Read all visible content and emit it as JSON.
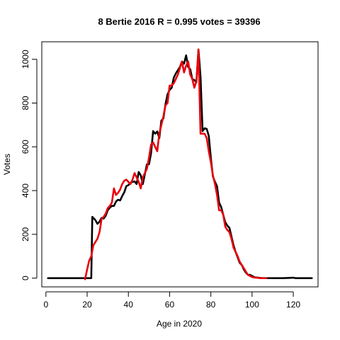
{
  "chart_data": {
    "type": "line",
    "title": "8 Bertie 2016 R = 0.995 votes = 39396",
    "xlabel": "Age in 2020",
    "ylabel": "Votes",
    "xlim": [
      -2,
      132
    ],
    "ylim": [
      -40,
      1080
    ],
    "xticks": [
      0,
      20,
      40,
      60,
      80,
      100,
      120
    ],
    "yticks": [
      0,
      200,
      400,
      600,
      800,
      1000
    ],
    "grid": false,
    "legend": "none",
    "series": [
      {
        "color": "#000000",
        "points": [
          [
            1,
            0
          ],
          [
            5,
            0
          ],
          [
            10,
            0
          ],
          [
            15,
            0
          ],
          [
            18,
            0
          ],
          [
            20,
            0
          ],
          [
            22,
            0
          ],
          [
            22.5,
            280
          ],
          [
            24,
            265
          ],
          [
            25,
            248
          ],
          [
            26,
            258
          ],
          [
            27,
            275
          ],
          [
            28,
            272
          ],
          [
            29,
            285
          ],
          [
            30,
            310
          ],
          [
            31,
            322
          ],
          [
            32,
            330
          ],
          [
            33,
            330
          ],
          [
            34,
            350
          ],
          [
            35,
            358
          ],
          [
            36,
            355
          ],
          [
            37,
            375
          ],
          [
            38,
            392
          ],
          [
            39,
            420
          ],
          [
            40,
            425
          ],
          [
            41,
            435
          ],
          [
            42,
            440
          ],
          [
            43,
            442
          ],
          [
            44,
            430
          ],
          [
            45,
            485
          ],
          [
            46,
            470
          ],
          [
            47,
            430
          ],
          [
            48,
            475
          ],
          [
            49,
            520
          ],
          [
            50,
            520
          ],
          [
            51,
            570
          ],
          [
            52,
            672
          ],
          [
            53,
            660
          ],
          [
            54,
            670
          ],
          [
            55,
            640
          ],
          [
            56,
            720
          ],
          [
            57,
            730
          ],
          [
            58,
            795
          ],
          [
            59,
            840
          ],
          [
            60,
            860
          ],
          [
            61,
            870
          ],
          [
            62,
            915
          ],
          [
            63,
            935
          ],
          [
            64,
            950
          ],
          [
            65,
            965
          ],
          [
            66,
            990
          ],
          [
            67,
            980
          ],
          [
            68,
            1018
          ],
          [
            69,
            965
          ],
          [
            70,
            955
          ],
          [
            71,
            910
          ],
          [
            72,
            905
          ],
          [
            73,
            895
          ],
          [
            74,
            1045
          ],
          [
            75,
            920
          ],
          [
            76,
            672
          ],
          [
            77,
            685
          ],
          [
            78,
            682
          ],
          [
            79,
            650
          ],
          [
            80,
            550
          ],
          [
            81,
            465
          ],
          [
            82,
            440
          ],
          [
            83,
            420
          ],
          [
            84,
            345
          ],
          [
            85,
            325
          ],
          [
            86,
            290
          ],
          [
            87,
            255
          ],
          [
            88,
            240
          ],
          [
            89,
            230
          ],
          [
            90,
            190
          ],
          [
            91,
            150
          ],
          [
            92,
            120
          ],
          [
            93,
            95
          ],
          [
            94,
            70
          ],
          [
            95,
            60
          ],
          [
            96,
            40
          ],
          [
            97,
            25
          ],
          [
            98,
            15
          ],
          [
            99,
            15
          ],
          [
            100,
            10
          ],
          [
            101,
            5
          ],
          [
            102,
            3
          ],
          [
            103,
            2
          ],
          [
            105,
            0
          ],
          [
            108,
            0
          ],
          [
            110,
            0
          ],
          [
            115,
            0
          ],
          [
            120,
            2
          ],
          [
            121,
            0
          ],
          [
            125,
            0
          ],
          [
            129,
            0
          ]
        ]
      },
      {
        "color": "#e8000b",
        "points": [
          [
            19,
            -5
          ],
          [
            20,
            40
          ],
          [
            21,
            80
          ],
          [
            22,
            100
          ],
          [
            23,
            150
          ],
          [
            24,
            165
          ],
          [
            25,
            180
          ],
          [
            26,
            210
          ],
          [
            27,
            270
          ],
          [
            28,
            280
          ],
          [
            29,
            295
          ],
          [
            30,
            320
          ],
          [
            31,
            330
          ],
          [
            32,
            345
          ],
          [
            33,
            410
          ],
          [
            34,
            380
          ],
          [
            35,
            390
          ],
          [
            36,
            405
          ],
          [
            37,
            430
          ],
          [
            38,
            445
          ],
          [
            39,
            450
          ],
          [
            40,
            440
          ],
          [
            41,
            430
          ],
          [
            42,
            450
          ],
          [
            43,
            480
          ],
          [
            44,
            460
          ],
          [
            45,
            440
          ],
          [
            46,
            410
          ],
          [
            47,
            460
          ],
          [
            48,
            480
          ],
          [
            49,
            500
          ],
          [
            50,
            550
          ],
          [
            51,
            610
          ],
          [
            52,
            620
          ],
          [
            53,
            600
          ],
          [
            54,
            580
          ],
          [
            55,
            660
          ],
          [
            56,
            700
          ],
          [
            57,
            740
          ],
          [
            58,
            790
          ],
          [
            59,
            800
          ],
          [
            60,
            880
          ],
          [
            61,
            880
          ],
          [
            62,
            890
          ],
          [
            63,
            910
          ],
          [
            64,
            930
          ],
          [
            65,
            960
          ],
          [
            66,
            990
          ],
          [
            67,
            940
          ],
          [
            68,
            970
          ],
          [
            69,
            990
          ],
          [
            70,
            930
          ],
          [
            71,
            910
          ],
          [
            72,
            870
          ],
          [
            73,
            900
          ],
          [
            74,
            1045
          ],
          [
            75,
            660
          ],
          [
            76,
            660
          ],
          [
            77,
            660
          ],
          [
            78,
            640
          ],
          [
            79,
            580
          ],
          [
            80,
            530
          ],
          [
            81,
            470
          ],
          [
            82,
            430
          ],
          [
            83,
            380
          ],
          [
            84,
            310
          ],
          [
            85,
            310
          ],
          [
            86,
            290
          ],
          [
            87,
            235
          ],
          [
            88,
            220
          ],
          [
            89,
            210
          ],
          [
            90,
            180
          ],
          [
            91,
            140
          ],
          [
            92,
            120
          ],
          [
            93,
            100
          ],
          [
            94,
            75
          ],
          [
            95,
            60
          ],
          [
            96,
            45
          ],
          [
            97,
            30
          ],
          [
            98,
            15
          ],
          [
            99,
            10
          ],
          [
            100,
            5
          ],
          [
            101,
            3
          ],
          [
            102,
            2
          ],
          [
            104,
            0
          ],
          [
            107,
            0
          ]
        ]
      }
    ]
  }
}
